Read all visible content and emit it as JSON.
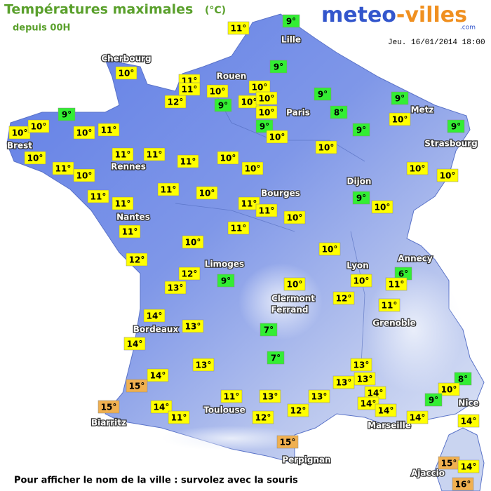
{
  "header": {
    "title": "Températures maximales",
    "unit": "(°C)",
    "subtitle": "depuis 00H",
    "logo": {
      "main": "meteo",
      "accent": "-villes",
      "suffix": ".com"
    },
    "date": "Jeu. 16/01/2014 18:00"
  },
  "map": {
    "cities": [
      "Cherbourg",
      "Lille",
      "Rouen",
      "Paris",
      "Metz",
      "Brest",
      "Strasbourg",
      "Rennes",
      "Dijon",
      "Bourges",
      "Nantes",
      "Annecy",
      "Limoges",
      "Lyon",
      "Clermont",
      "Ferrand",
      "Grenoble",
      "Bordeaux",
      "Toulouse",
      "Biarritz",
      "Marseille",
      "Nice",
      "Perpignan",
      "Ajaccio"
    ],
    "readings": [
      {
        "text": "9°",
        "color": "#33ee33"
      },
      {
        "text": "11°",
        "color": "#ffff00"
      },
      {
        "text": "9°",
        "color": "#33ee33"
      },
      {
        "text": "10°",
        "color": "#ffff00"
      },
      {
        "text": "11°",
        "color": "#ffff00"
      },
      {
        "text": "11°",
        "color": "#ffff00"
      },
      {
        "text": "10°",
        "color": "#ffff00"
      },
      {
        "text": "10°",
        "color": "#ffff00"
      },
      {
        "text": "9°",
        "color": "#33ee33"
      },
      {
        "text": "9°",
        "color": "#33ee33"
      },
      {
        "text": "12°",
        "color": "#ffff00"
      },
      {
        "text": "9°",
        "color": "#33ee33"
      },
      {
        "text": "10°",
        "color": "#ffff00"
      },
      {
        "text": "10°",
        "color": "#ffff00"
      },
      {
        "text": "10°",
        "color": "#ffff00"
      },
      {
        "text": "8°",
        "color": "#33ee33"
      },
      {
        "text": "9°",
        "color": "#33ee33"
      },
      {
        "text": "10°",
        "color": "#ffff00"
      },
      {
        "text": "10°",
        "color": "#ffff00"
      },
      {
        "text": "10°",
        "color": "#ffff00"
      },
      {
        "text": "10°",
        "color": "#ffff00"
      },
      {
        "text": "11°",
        "color": "#ffff00"
      },
      {
        "text": "9°",
        "color": "#33ee33"
      },
      {
        "text": "9°",
        "color": "#33ee33"
      },
      {
        "text": "9°",
        "color": "#33ee33"
      },
      {
        "text": "10°",
        "color": "#ffff00"
      },
      {
        "text": "10°",
        "color": "#ffff00"
      },
      {
        "text": "11°",
        "color": "#ffff00"
      },
      {
        "text": "11°",
        "color": "#ffff00"
      },
      {
        "text": "11°",
        "color": "#ffff00"
      },
      {
        "text": "10°",
        "color": "#ffff00"
      },
      {
        "text": "10°",
        "color": "#ffff00"
      },
      {
        "text": "11°",
        "color": "#ffff00"
      },
      {
        "text": "10°",
        "color": "#ffff00"
      },
      {
        "text": "10°",
        "color": "#ffff00"
      },
      {
        "text": "10°",
        "color": "#ffff00"
      },
      {
        "text": "10°",
        "color": "#ffff00"
      },
      {
        "text": "11°",
        "color": "#ffff00"
      },
      {
        "text": "10°",
        "color": "#ffff00"
      },
      {
        "text": "9°",
        "color": "#33ee33"
      },
      {
        "text": "11°",
        "color": "#ffff00"
      },
      {
        "text": "11°",
        "color": "#ffff00"
      },
      {
        "text": "11°",
        "color": "#ffff00"
      },
      {
        "text": "11°",
        "color": "#ffff00"
      },
      {
        "text": "10°",
        "color": "#ffff00"
      },
      {
        "text": "10°",
        "color": "#ffff00"
      },
      {
        "text": "11°",
        "color": "#ffff00"
      },
      {
        "text": "11°",
        "color": "#ffff00"
      },
      {
        "text": "10°",
        "color": "#ffff00"
      },
      {
        "text": "10°",
        "color": "#ffff00"
      },
      {
        "text": "12°",
        "color": "#ffff00"
      },
      {
        "text": "12°",
        "color": "#ffff00"
      },
      {
        "text": "6°",
        "color": "#33ee33"
      },
      {
        "text": "9°",
        "color": "#33ee33"
      },
      {
        "text": "10°",
        "color": "#ffff00"
      },
      {
        "text": "10°",
        "color": "#ffff00"
      },
      {
        "text": "13°",
        "color": "#ffff00"
      },
      {
        "text": "11°",
        "color": "#ffff00"
      },
      {
        "text": "12°",
        "color": "#ffff00"
      },
      {
        "text": "11°",
        "color": "#ffff00"
      },
      {
        "text": "14°",
        "color": "#ffff00"
      },
      {
        "text": "13°",
        "color": "#ffff00"
      },
      {
        "text": "7°",
        "color": "#33ee33"
      },
      {
        "text": "14°",
        "color": "#ffff00"
      },
      {
        "text": "7°",
        "color": "#33ee33"
      },
      {
        "text": "13°",
        "color": "#ffff00"
      },
      {
        "text": "13°",
        "color": "#ffff00"
      },
      {
        "text": "14°",
        "color": "#ffff00"
      },
      {
        "text": "8°",
        "color": "#33ee33"
      },
      {
        "text": "15°",
        "color": "#f0b050"
      },
      {
        "text": "13°",
        "color": "#ffff00"
      },
      {
        "text": "13°",
        "color": "#ffff00"
      },
      {
        "text": "10°",
        "color": "#ffff00"
      },
      {
        "text": "14°",
        "color": "#ffff00"
      },
      {
        "text": "11°",
        "color": "#ffff00"
      },
      {
        "text": "13°",
        "color": "#ffff00"
      },
      {
        "text": "13°",
        "color": "#ffff00"
      },
      {
        "text": "9°",
        "color": "#33ee33"
      },
      {
        "text": "14°",
        "color": "#ffff00"
      },
      {
        "text": "15°",
        "color": "#f0b050"
      },
      {
        "text": "14°",
        "color": "#ffff00"
      },
      {
        "text": "14°",
        "color": "#ffff00"
      },
      {
        "text": "12°",
        "color": "#ffff00"
      },
      {
        "text": "11°",
        "color": "#ffff00"
      },
      {
        "text": "12°",
        "color": "#ffff00"
      },
      {
        "text": "14°",
        "color": "#ffff00"
      },
      {
        "text": "14°",
        "color": "#ffff00"
      },
      {
        "text": "15°",
        "color": "#f0b050"
      },
      {
        "text": "15°",
        "color": "#f0b050"
      },
      {
        "text": "14°",
        "color": "#ffff00"
      },
      {
        "text": "16°",
        "color": "#f0b050"
      }
    ]
  },
  "footer": "Pour afficher le nom de la ville : survolez avec la souris"
}
